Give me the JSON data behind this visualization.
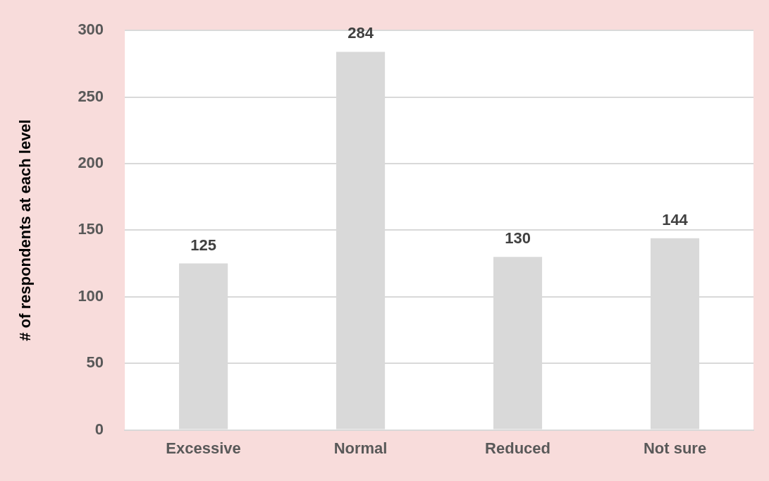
{
  "chart_data": {
    "type": "bar",
    "ylabel": "# of respondents at each level",
    "categories": [
      "Excessive",
      "Normal",
      "Reduced",
      "Not sure"
    ],
    "values": [
      125,
      284,
      130,
      144
    ],
    "color": "#d9d9d9",
    "ylim": [
      0,
      300
    ],
    "yticks": [
      0,
      50,
      100,
      150,
      200,
      250,
      300
    ],
    "grid": "y",
    "data_labels": true,
    "legend": false
  }
}
